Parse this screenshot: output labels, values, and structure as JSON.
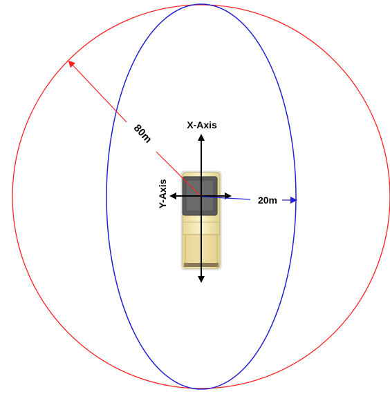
{
  "diagram": {
    "labels": {
      "x_axis": "X-Axis",
      "y_axis": "Y-Axis",
      "red_radius": "80m",
      "blue_radius": "20m"
    },
    "colors": {
      "outer_circle": "#ff2020",
      "inner_ellipse": "#2020d0",
      "red_arrow": "#ff2020",
      "blue_arrow": "#2020d0",
      "axis": "#000000",
      "vehicle_body": "#f3e9b2",
      "vehicle_cab": "#5a5a5a",
      "vehicle_outline": "#b8a878"
    },
    "icons": {
      "vehicle": "vehicle-top-view-icon"
    }
  }
}
